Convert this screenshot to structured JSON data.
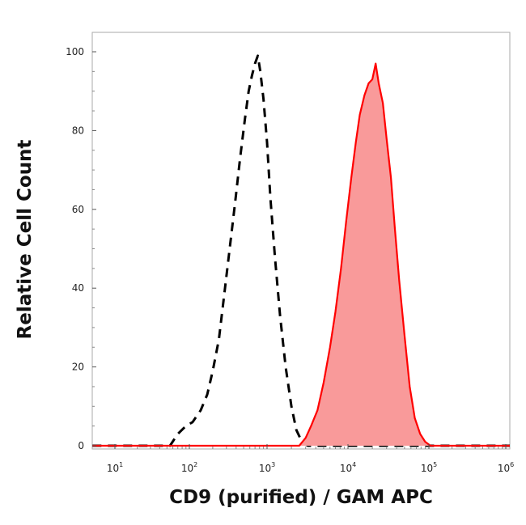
{
  "chart_data": {
    "type": "area",
    "title": "",
    "xlabel": "CD9 (purified) / GAM APC",
    "ylabel": "Relative Cell Count",
    "xscale": "log",
    "xlim": [
      5,
      1200000
    ],
    "ylim": [
      0,
      100
    ],
    "grid": false,
    "legend": "none",
    "x_ticks": [
      {
        "base": "10",
        "exp": "1",
        "value": 10
      },
      {
        "base": "10",
        "exp": "2",
        "value": 100
      },
      {
        "base": "10",
        "exp": "3",
        "value": 1000
      },
      {
        "base": "10",
        "exp": "4",
        "value": 10000
      },
      {
        "base": "10",
        "exp": "5",
        "value": 100000
      },
      {
        "base": "10",
        "exp": "6",
        "value": 1000000
      }
    ],
    "y_ticks": [
      "0",
      "20",
      "40",
      "60",
      "80",
      "100"
    ],
    "series": [
      {
        "style": "dashed",
        "color": "#000000",
        "fill": "none",
        "x": [
          5,
          55,
          70,
          90,
          110,
          140,
          170,
          200,
          240,
          280,
          330,
          390,
          450,
          520,
          580,
          640,
          700,
          760,
          820,
          900,
          1000,
          1100,
          1250,
          1450,
          1700,
          2000,
          2300,
          2700,
          3200,
          5000,
          1200000
        ],
        "y": [
          0,
          0,
          3,
          5,
          6,
          9,
          13,
          19,
          27,
          38,
          50,
          62,
          73,
          83,
          90,
          94,
          97,
          99,
          95,
          88,
          77,
          63,
          48,
          33,
          20,
          10,
          4,
          1,
          0,
          0,
          0
        ]
      },
      {
        "style": "solid",
        "color": "#ff0000",
        "fill": "#f99a9a",
        "x": [
          5,
          2500,
          3000,
          3500,
          4200,
          5000,
          6000,
          7000,
          8200,
          9500,
          11000,
          12500,
          14000,
          16000,
          18000,
          20000,
          22000,
          24000,
          27000,
          30000,
          34000,
          38000,
          43000,
          50000,
          58000,
          67000,
          78000,
          90000,
          105000,
          1200000
        ],
        "y": [
          0,
          0,
          2,
          5,
          9,
          16,
          25,
          34,
          45,
          57,
          68,
          77,
          84,
          89,
          92,
          93,
          97,
          92,
          87,
          78,
          68,
          55,
          42,
          28,
          15,
          7,
          3,
          1,
          0,
          0
        ]
      }
    ]
  }
}
